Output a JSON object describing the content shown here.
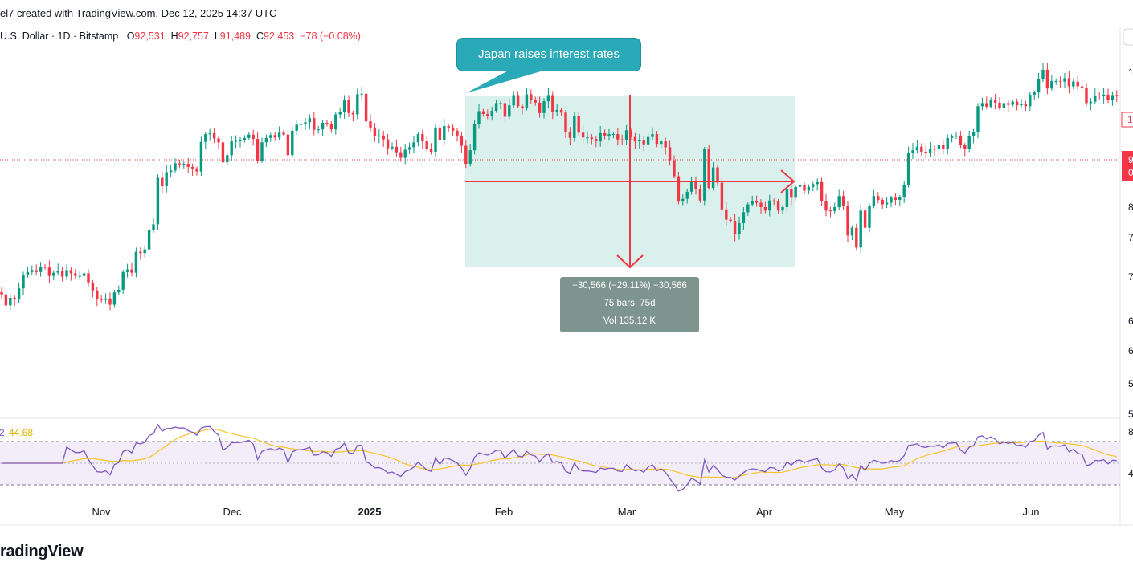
{
  "header": {
    "credit": "el7 created with TradingView.com, Dec 12, 2025 14:37 UTC"
  },
  "symbol_line": {
    "symbol": "U.S. Dollar · 1D · Bitstamp",
    "open_label": "O",
    "open": "92,531",
    "high_label": "H",
    "high": "92,757",
    "low_label": "L",
    "low": "91,489",
    "close_label": "C",
    "close": "92,453",
    "change": "−78 (−0.08%)"
  },
  "annotation": {
    "callout_text": "Japan raises interest rates"
  },
  "measure": {
    "line1": "−30,566 (−29.11%) −30,566",
    "line2": "75 bars, 75d",
    "line3": "Vol 135.12 K"
  },
  "rsi": {
    "label_prefix": "2",
    "value": "44.68"
  },
  "price_axis": {
    "visible_fragments": [
      "1",
      "1",
      "9",
      "0",
      "8",
      "7",
      "7",
      "6",
      "6",
      "5",
      "5",
      "8",
      "4"
    ]
  },
  "logo": "radingView",
  "colors": {
    "up": "#089981",
    "down": "#f23645",
    "rsi_line": "#7e57c2",
    "rsi_ma": "#f7c325",
    "rsi_band": "#7e57c2",
    "measure_zone": "#d9f0ec",
    "callout": "#2aa9b8"
  },
  "chart_data": {
    "type": "candlestick",
    "title": "U.S. Dollar · 1D · Bitstamp",
    "x_ticks": [
      "Nov",
      "Dec",
      "2025",
      "Feb",
      "Mar",
      "Apr",
      "May",
      "Jun"
    ],
    "current_price": 92453,
    "ylim": [
      53000,
      115000
    ],
    "close": [
      69000,
      67400,
      68500,
      68300,
      69900,
      71900,
      72400,
      72700,
      72400,
      73200,
      73100,
      71800,
      72300,
      72600,
      71700,
      72700,
      72200,
      71800,
      71800,
      72200,
      70800,
      69600,
      68300,
      68200,
      68400,
      67500,
      69300,
      69700,
      72400,
      72800,
      72300,
      75600,
      75400,
      76000,
      79200,
      80200,
      88600,
      87000,
      89700,
      90000,
      91400,
      91200,
      91300,
      90700,
      90400,
      89800,
      95700,
      97300,
      97500,
      96400,
      95600,
      91600,
      93000,
      95800,
      95900,
      96000,
      96500,
      97200,
      96300,
      91900,
      95600,
      96500,
      97100,
      96600,
      97600,
      97200,
      93000,
      98000,
      99300,
      99400,
      99800,
      100700,
      98200,
      98300,
      99700,
      99400,
      98300,
      101500,
      102100,
      104700,
      101800,
      101500,
      106000,
      106100,
      100000,
      98700,
      96900,
      97000,
      96200,
      94400,
      94700,
      93600,
      92500,
      94100,
      94600,
      95600,
      97300,
      95800,
      94300,
      93700,
      98700,
      96100,
      99000,
      98700,
      98000,
      97000,
      94900,
      91300,
      94000,
      99500,
      102200,
      101600,
      101200,
      102300,
      104000,
      104000,
      101000,
      103500,
      105800,
      103300,
      102800,
      106000,
      104600,
      104100,
      101800,
      104400,
      105800,
      102100,
      102500,
      101900,
      97700,
      96500,
      101200,
      97600,
      96600,
      96600,
      96300,
      95800,
      97500,
      97000,
      97300,
      97300,
      96200,
      96000,
      98100,
      96700,
      95800,
      96100,
      95200,
      96700,
      97300,
      95300,
      95800,
      94600,
      92000,
      88900,
      84200,
      84700,
      86000,
      87900,
      86500,
      84400,
      94300,
      86700,
      90600,
      87700,
      82800,
      81000,
      80800,
      78600,
      80400,
      82300,
      83700,
      84300,
      84000,
      83200,
      82600,
      84400,
      84200,
      82600,
      83200,
      86500,
      84900,
      86900,
      87200,
      86200,
      86900,
      87400,
      87800,
      84300,
      82600,
      82500,
      83200,
      85200,
      83500,
      78300,
      79600,
      76300,
      82600,
      79600,
      83400,
      85200,
      84500,
      83700,
      84000,
      84900,
      84500,
      85000,
      87200,
      93500,
      94000,
      94700,
      93700,
      93500,
      94300,
      94200,
      95000,
      94200,
      96500,
      96800,
      97000,
      95100,
      94300,
      96900,
      97700,
      103300,
      104000,
      103200,
      104700,
      104100,
      102900,
      104000,
      103600,
      104300,
      103500,
      103800,
      103300,
      105900,
      106400,
      109600,
      111700,
      107300,
      109000,
      109000,
      108900,
      109700,
      107800,
      108900,
      107800,
      107500,
      104000,
      104300,
      105700,
      105600,
      105900,
      104700,
      105800,
      105700,
      104600,
      103900,
      105900,
      110300,
      110200,
      108600,
      106600,
      106100,
      106000,
      107000,
      104300,
      104100,
      105600,
      105600,
      105600,
      104700,
      104100,
      101700,
      104800,
      107600,
      107700
    ]
  }
}
